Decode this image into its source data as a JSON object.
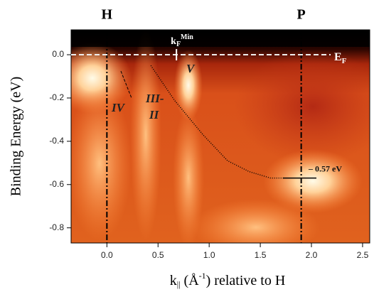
{
  "chart_data": {
    "type": "image-plot",
    "y_label": "Binding Energy (eV)",
    "x_label": [
      "k",
      "||",
      " (Å",
      "-1",
      ") relative to H"
    ],
    "xlim": [
      -0.35,
      2.57
    ],
    "ylim": [
      -0.87,
      0.115
    ],
    "xticks": [
      {
        "value": 0,
        "label": "0.0"
      },
      0.5,
      {
        "value": 1,
        "label": "1.0"
      },
      1.5,
      {
        "value": 2,
        "label": "2.0"
      },
      2.5
    ],
    "yticks": [
      {
        "value": 0,
        "label": "0.0"
      },
      -0.2,
      -0.4,
      -0.6,
      -0.8
    ],
    "reference_lines": [
      {
        "axis": "x",
        "value": 0,
        "label": "H"
      },
      {
        "axis": "x",
        "value": 1.9,
        "label": "P"
      }
    ],
    "fermi_level": {
      "value": 0,
      "label": [
        "E",
        "F"
      ]
    },
    "kf_min": {
      "value": 0.68,
      "label": [
        "k",
        "F",
        "Min"
      ]
    },
    "band_bottom": {
      "value": -0.57,
      "label": "– 0.57 eV"
    },
    "series": [
      {
        "color": "#000000",
        "style": "dotted",
        "x": [
          0.43,
          0.66,
          0.94,
          1.18,
          1.39,
          1.6,
          1.74
        ],
        "y": [
          -0.05,
          -0.21,
          -0.37,
          -0.49,
          -0.54,
          -0.57,
          -0.57
        ]
      }
    ],
    "annotations": [
      "V",
      "IV",
      "III-",
      "II"
    ]
  }
}
